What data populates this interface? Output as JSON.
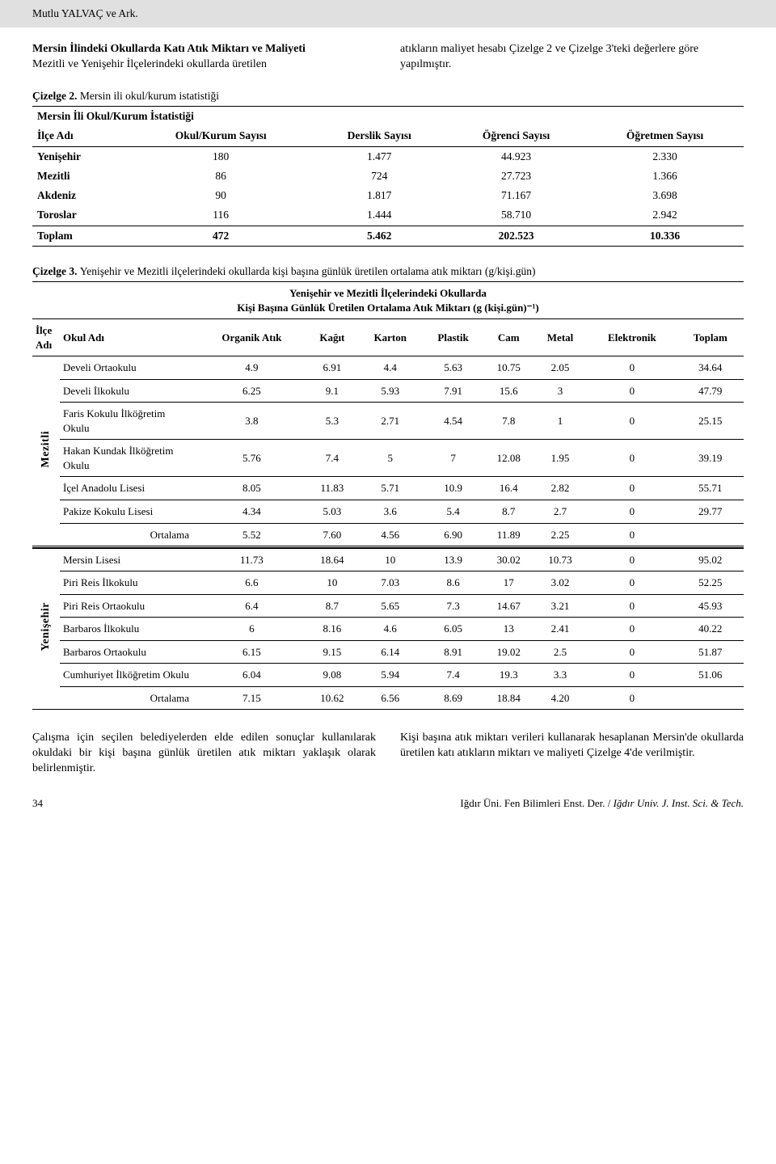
{
  "header_author": "Mutlu YALVAÇ ve Ark.",
  "intro": {
    "left_title": "Mersin İlindeki Okullarda Katı Atık Miktarı ve Maliyeti",
    "left_body": "Mezitli ve Yenişehir İlçelerindeki okullarda üretilen",
    "right_body": "atıkların maliyet hesabı Çizelge 2 ve Çizelge 3'teki değerlere göre yapılmıştır."
  },
  "table2": {
    "caption_label": "Çizelge 2.",
    "caption_body": "Mersin ili okul/kurum istatistiği",
    "title": "Mersin İli Okul/Kurum İstatistiği",
    "columns": [
      "İlçe Adı",
      "Okul/Kurum Sayısı",
      "Derslik Sayısı",
      "Öğrenci Sayısı",
      "Öğretmen Sayısı"
    ],
    "rows": [
      {
        "ilce": "Yenişehir",
        "v": [
          "180",
          "1.477",
          "44.923",
          "2.330"
        ]
      },
      {
        "ilce": "Mezitli",
        "v": [
          "86",
          "724",
          "27.723",
          "1.366"
        ]
      },
      {
        "ilce": "Akdeniz",
        "v": [
          "90",
          "1.817",
          "71.167",
          "3.698"
        ]
      },
      {
        "ilce": "Toroslar",
        "v": [
          "116",
          "1.444",
          "58.710",
          "2.942"
        ]
      }
    ],
    "total": {
      "label": "Toplam",
      "v": [
        "472",
        "5.462",
        "202.523",
        "10.336"
      ]
    }
  },
  "table3": {
    "caption_label": "Çizelge 3.",
    "caption_body": "Yenişehir ve Mezitli ilçelerindeki okullarda kişi başına günlük üretilen ortalama atık miktarı (g/kişi.gün)",
    "title_line1": "Yenişehir ve Mezitli İlçelerindeki Okullarda",
    "title_line2": "Kişi Başına Günlük Üretilen Ortalama Atık Miktarı (g (kişi.gün)⁻¹)",
    "columns": [
      "İlçe Adı",
      "Okul Adı",
      "Organik Atık",
      "Kağıt",
      "Karton",
      "Plastik",
      "Cam",
      "Metal",
      "Elektronik",
      "Toplam"
    ],
    "groups": [
      {
        "ilce": "Mezitli",
        "rows": [
          {
            "okul": "Develi Ortaokulu",
            "v": [
              "4.9",
              "6.91",
              "4.4",
              "5.63",
              "10.75",
              "2.05",
              "0",
              "34.64"
            ]
          },
          {
            "okul": "Develi İlkokulu",
            "v": [
              "6.25",
              "9.1",
              "5.93",
              "7.91",
              "15.6",
              "3",
              "0",
              "47.79"
            ]
          },
          {
            "okul": "Faris Kokulu İlköğretim Okulu",
            "v": [
              "3.8",
              "5.3",
              "2.71",
              "4.54",
              "7.8",
              "1",
              "0",
              "25.15"
            ]
          },
          {
            "okul": "Hakan Kundak İlköğretim Okulu",
            "v": [
              "5.76",
              "7.4",
              "5",
              "7",
              "12.08",
              "1.95",
              "0",
              "39.19"
            ]
          },
          {
            "okul": "İçel Anadolu Lisesi",
            "v": [
              "8.05",
              "11.83",
              "5.71",
              "10.9",
              "16.4",
              "2.82",
              "0",
              "55.71"
            ]
          },
          {
            "okul": "Pakize Kokulu Lisesi",
            "v": [
              "4.34",
              "5.03",
              "3.6",
              "5.4",
              "8.7",
              "2.7",
              "0",
              "29.77"
            ]
          }
        ],
        "ortalama": [
          "5.52",
          "7.60",
          "4.56",
          "6.90",
          "11.89",
          "2.25",
          "0",
          ""
        ]
      },
      {
        "ilce": "Yenişehir",
        "rows": [
          {
            "okul": "Mersin Lisesi",
            "v": [
              "11.73",
              "18.64",
              "10",
              "13.9",
              "30.02",
              "10.73",
              "0",
              "95.02"
            ]
          },
          {
            "okul": "Piri Reis İlkokulu",
            "v": [
              "6.6",
              "10",
              "7.03",
              "8.6",
              "17",
              "3.02",
              "0",
              "52.25"
            ]
          },
          {
            "okul": "Piri Reis Ortaokulu",
            "v": [
              "6.4",
              "8.7",
              "5.65",
              "7.3",
              "14.67",
              "3.21",
              "0",
              "45.93"
            ]
          },
          {
            "okul": "Barbaros İlkokulu",
            "v": [
              "6",
              "8.16",
              "4.6",
              "6.05",
              "13",
              "2.41",
              "0",
              "40.22"
            ]
          },
          {
            "okul": "Barbaros Ortaokulu",
            "v": [
              "6.15",
              "9.15",
              "6.14",
              "8.91",
              "19.02",
              "2.5",
              "0",
              "51.87"
            ]
          },
          {
            "okul": "Cumhuriyet İlköğretim Okulu",
            "v": [
              "6.04",
              "9.08",
              "5.94",
              "7.4",
              "19.3",
              "3.3",
              "0",
              "51.06"
            ]
          }
        ],
        "ortalama": [
          "7.15",
          "10.62",
          "6.56",
          "8.69",
          "18.84",
          "4.20",
          "0",
          ""
        ]
      }
    ],
    "ortalama_label": "Ortalama"
  },
  "bottom": {
    "left": "Çalışma için seçilen belediyelerden elde edilen sonuçlar kullanılarak okuldaki bir kişi başına günlük üretilen atık miktarı yaklaşık olarak belirlenmiştir.",
    "right": "Kişi başına atık miktarı verileri kullanarak hesaplanan Mersin'de okullarda üretilen katı atıkların miktarı ve maliyeti Çizelge 4'de verilmiştir."
  },
  "footer": {
    "page": "34",
    "journal_tr": "Iğdır Üni. Fen Bilimleri Enst. Der. / ",
    "journal_en": "Iğdır Univ. J. Inst. Sci. & Tech."
  }
}
